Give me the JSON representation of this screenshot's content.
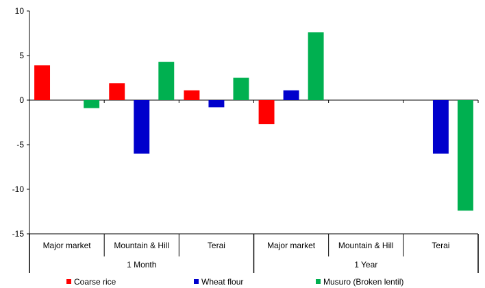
{
  "chart_data": {
    "type": "bar",
    "categories": [
      "Major  market",
      "Mountain & Hill",
      "Terai",
      "Major market",
      "Mountain & Hill",
      "Terai"
    ],
    "groups": [
      {
        "label": "1 Month",
        "span": [
          0,
          2
        ]
      },
      {
        "label": "1 Year",
        "span": [
          3,
          5
        ]
      }
    ],
    "series": [
      {
        "name": "Coarse rice",
        "color": "#ff0000",
        "values": [
          3.9,
          1.9,
          1.1,
          -2.7,
          0,
          0
        ]
      },
      {
        "name": "Wheat flour",
        "color": "#0000cc",
        "values": [
          0,
          -6.0,
          -0.8,
          1.1,
          0,
          -6.0
        ]
      },
      {
        "name": "Musuro (Broken lentil)",
        "color": "#00b050",
        "values": [
          -0.9,
          4.3,
          2.5,
          7.6,
          0,
          -12.4
        ]
      }
    ],
    "ylim": [
      -15,
      10
    ],
    "yticks": [
      "10",
      "5",
      "0",
      "-5",
      "-10",
      "-15"
    ],
    "ytick_values": [
      10,
      5,
      0,
      -5,
      -10,
      -15
    ],
    "legend": "bottom",
    "grid": false
  }
}
